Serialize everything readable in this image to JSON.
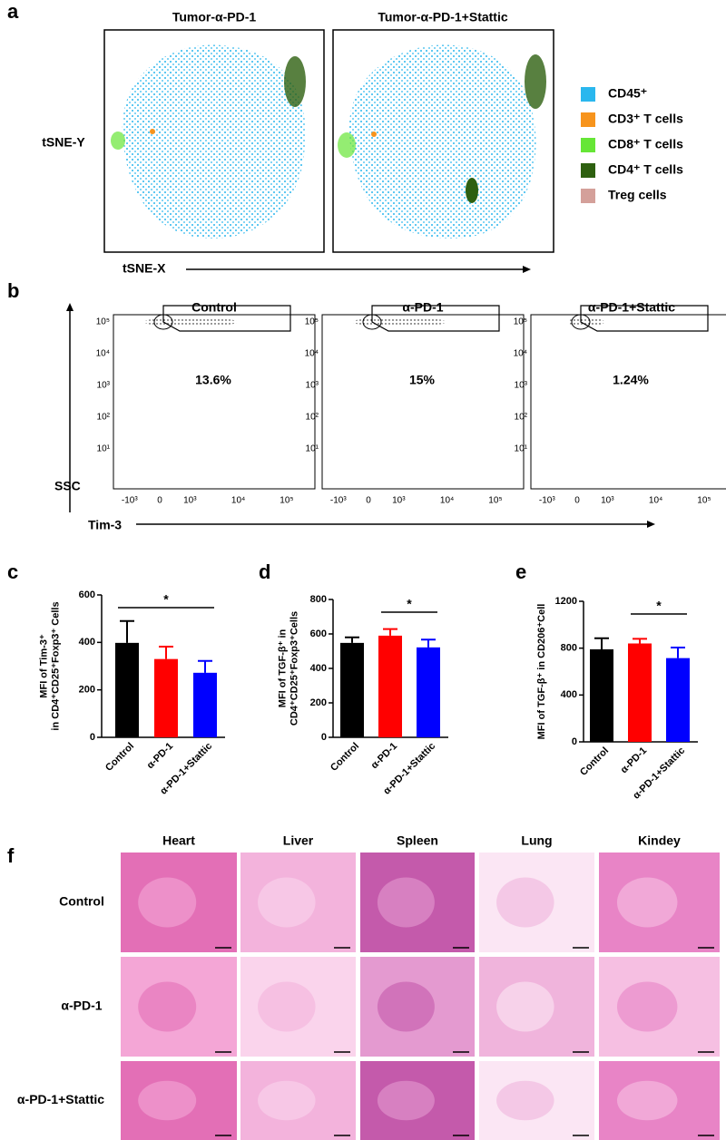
{
  "panel_a": {
    "label": "a",
    "titles": [
      "Tumor-α-PD-1",
      "Tumor-α-PD-1+Stattic"
    ],
    "y_axis": "tSNE-Y",
    "x_axis": "tSNE-X",
    "legend": [
      {
        "name": "CD45⁺",
        "color": "#2ab7ee"
      },
      {
        "name": "CD3⁺ T cells",
        "color": "#f7941d"
      },
      {
        "name": "CD8⁺ T cells",
        "color": "#66e636"
      },
      {
        "name": "CD4⁺ T cells",
        "color": "#2e6010"
      },
      {
        "name": "Treg cells",
        "color": "#d4a09a"
      }
    ]
  },
  "panel_b": {
    "label": "b",
    "titles": [
      "Control",
      "α-PD-1",
      "α-PD-1+Stattic"
    ],
    "gates": [
      "13.6%",
      "15%",
      "1.24%"
    ],
    "y_axis": "SSC",
    "x_axis": "Tim-3",
    "y_tick_labels": [
      "10⁵",
      "10⁴",
      "10³",
      "10²",
      "10¹"
    ],
    "x_tick_labels": [
      "-10³",
      "0",
      "10³",
      "10⁴",
      "10⁵"
    ]
  },
  "chart_data": [
    {
      "type": "bar",
      "panel_label": "c",
      "y_label": [
        "MFI of Tim-3⁺",
        "in CD4⁺CD25⁺Foxp3⁺ Cells"
      ],
      "categories": [
        "Control",
        "α-PD-1",
        "α-PD-1+Stattic"
      ],
      "values": [
        398,
        330,
        272
      ],
      "errors": [
        92,
        52,
        50
      ],
      "colors": [
        "#000000",
        "#ff0000",
        "#0000ff"
      ],
      "ylim": [
        0,
        600
      ],
      "yticks": [
        0,
        200,
        400,
        600
      ],
      "significance": {
        "label": "*",
        "between": [
          0,
          2
        ]
      }
    },
    {
      "type": "bar",
      "panel_label": "d",
      "y_label": [
        "MFI of TGF-β⁺ in",
        "CD4⁺CD25⁺Foxp3⁺Cells"
      ],
      "categories": [
        "Control",
        "α-PD-1",
        "α-PD-1+Stattic"
      ],
      "values": [
        548,
        590,
        522
      ],
      "errors": [
        32,
        38,
        45
      ],
      "colors": [
        "#000000",
        "#ff0000",
        "#0000ff"
      ],
      "ylim": [
        0,
        800
      ],
      "yticks": [
        0,
        200,
        400,
        600,
        800
      ],
      "significance": {
        "label": "*",
        "between": [
          1,
          2
        ]
      }
    },
    {
      "type": "bar",
      "panel_label": "e",
      "y_label": [
        "MFI of TGF-β⁺ in CD206⁺Cell"
      ],
      "categories": [
        "Control",
        "α-PD-1",
        "α-PD-1+Stattic"
      ],
      "values": [
        790,
        840,
        715
      ],
      "errors": [
        95,
        40,
        90
      ],
      "colors": [
        "#000000",
        "#ff0000",
        "#0000ff"
      ],
      "ylim": [
        0,
        1200
      ],
      "yticks": [
        0,
        400,
        800,
        1200
      ],
      "significance": {
        "label": "*",
        "between": [
          1,
          2
        ]
      }
    }
  ],
  "panel_f": {
    "label": "f",
    "columns": [
      "Heart",
      "Liver",
      "Spleen",
      "Lung",
      "Kindey"
    ],
    "rows": [
      "Control",
      "α-PD-1",
      "α-PD-1+Stattic"
    ]
  }
}
